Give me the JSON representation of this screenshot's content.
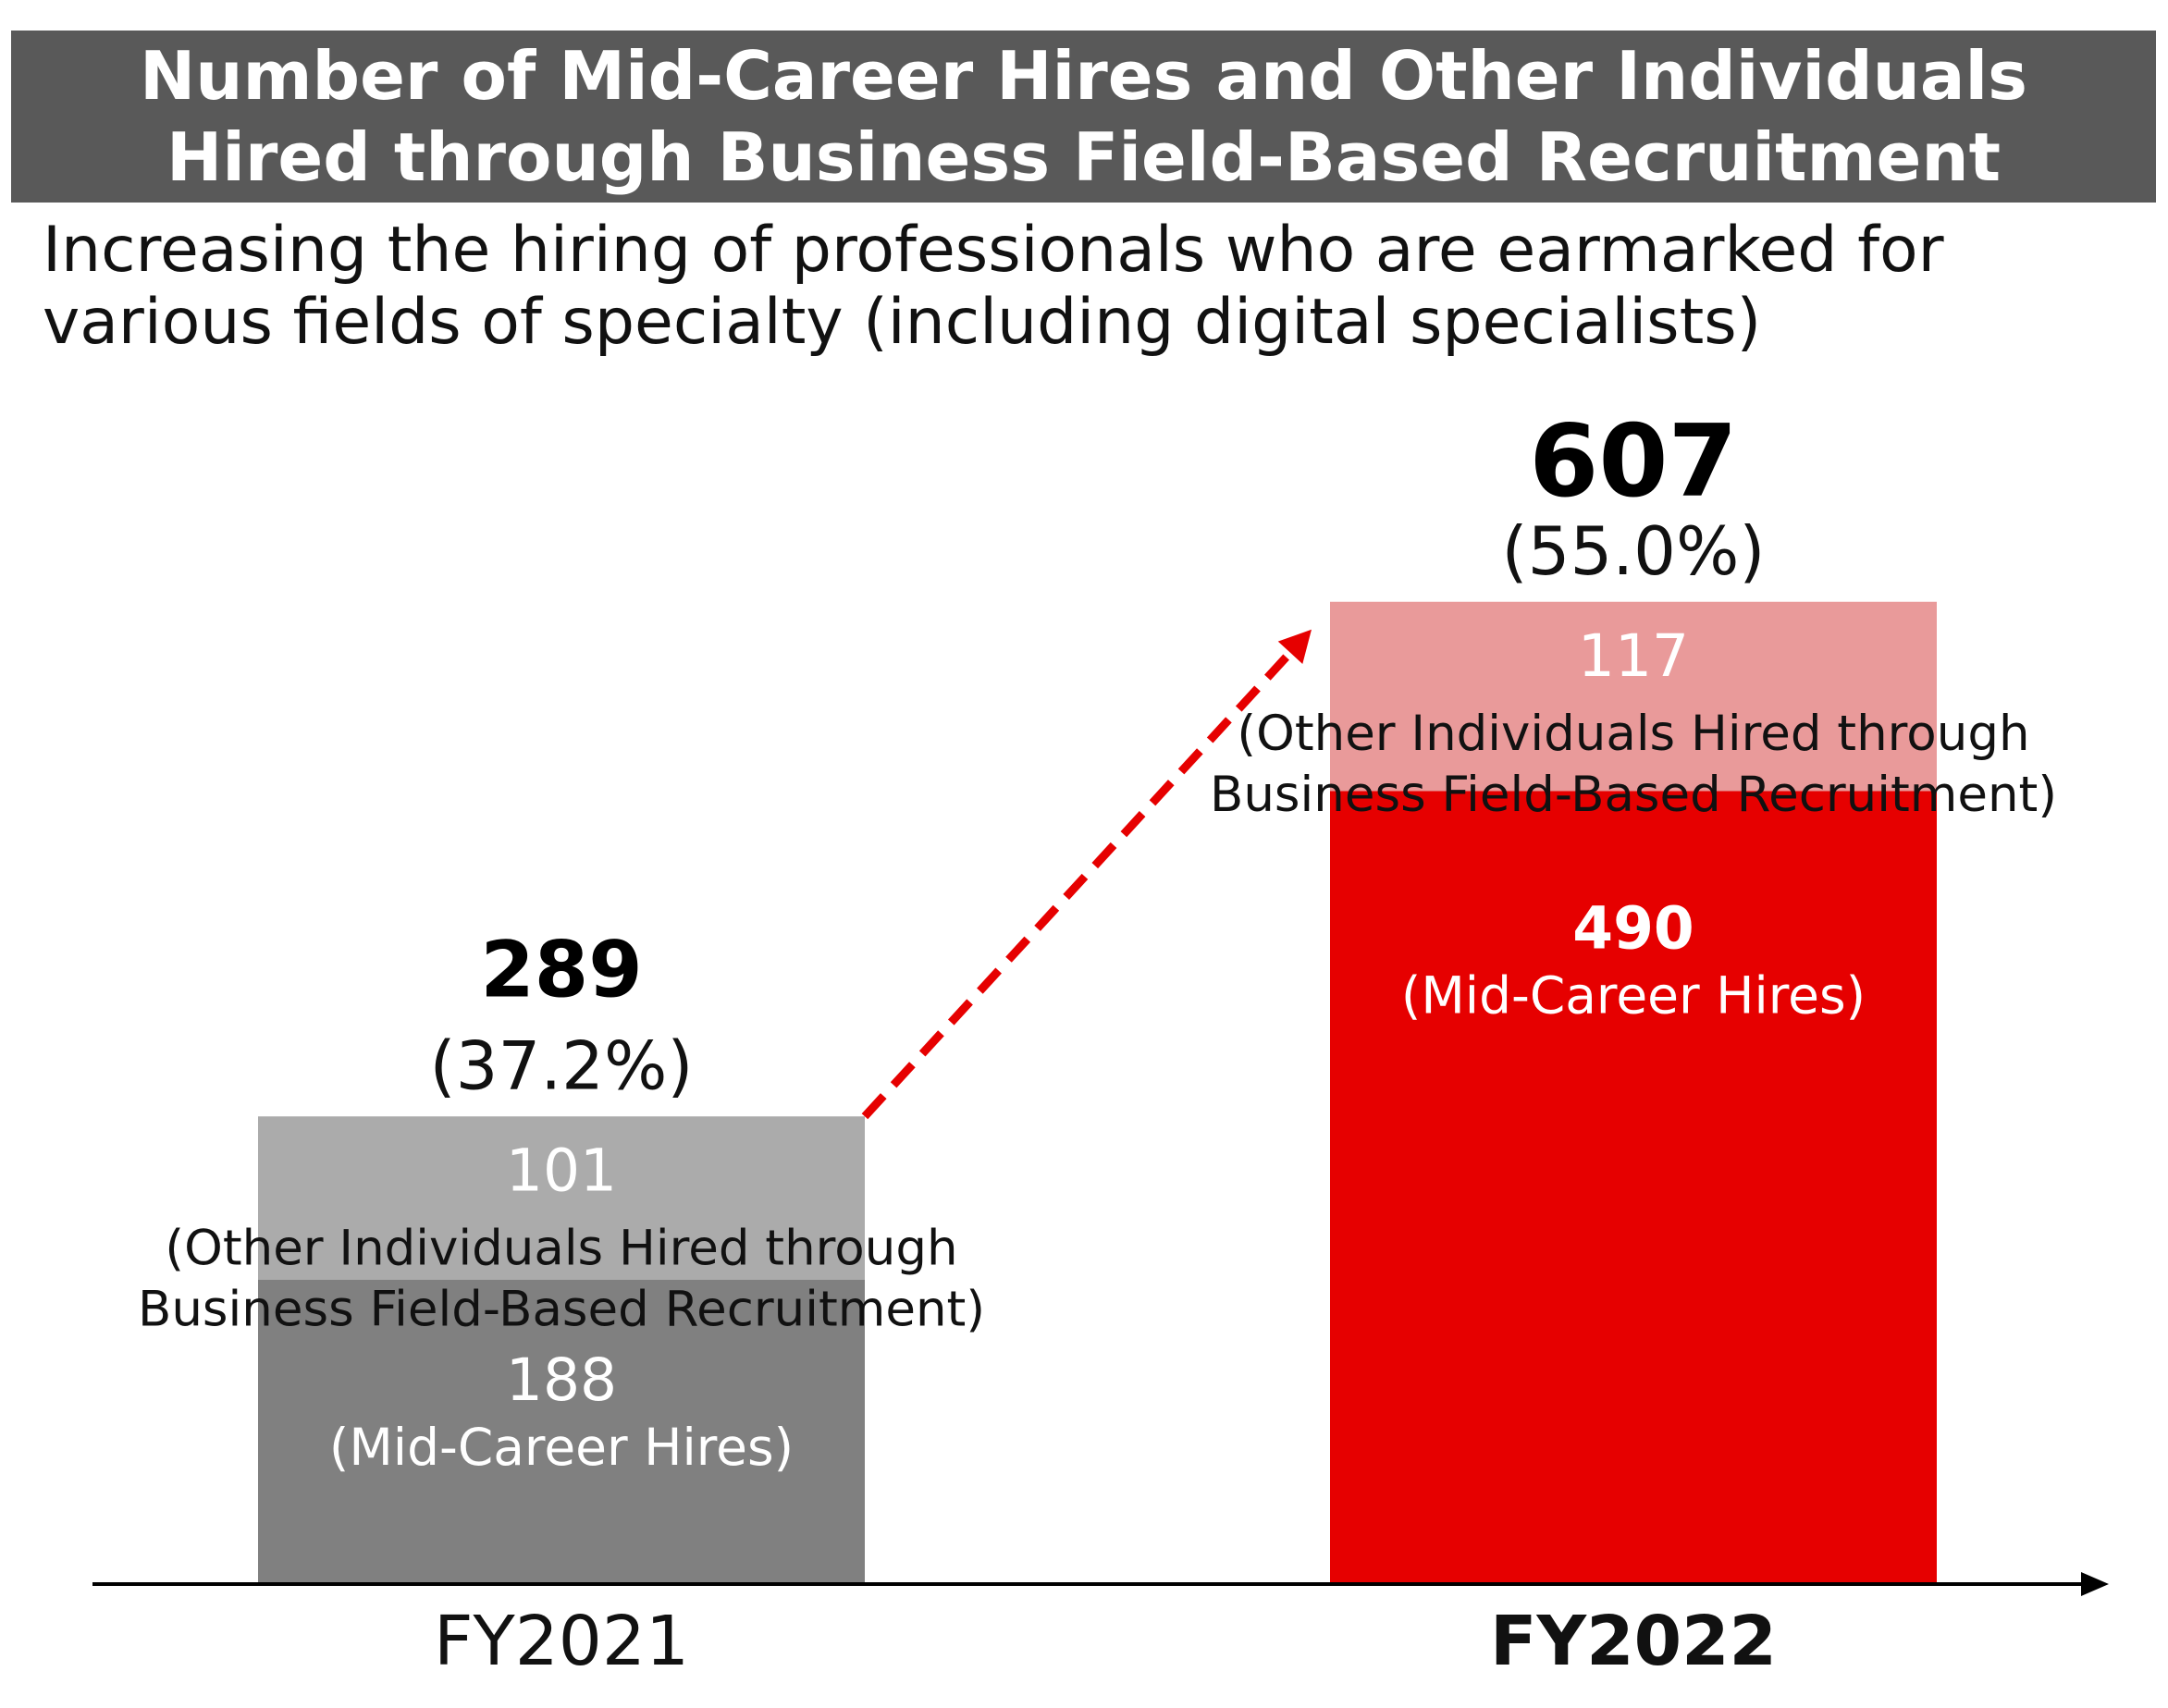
{
  "title": {
    "line1": "Number of Mid-Career Hires and Other Individuals",
    "line2": "Hired through Business Field-Based Recruitment"
  },
  "subtitle": {
    "line1": "Increasing the hiring of professionals who are earmarked for",
    "line2": "various fields of specialty (including digital specialists)"
  },
  "chart_data": {
    "type": "bar",
    "stacked": true,
    "categories": [
      "FY2021",
      "FY2022"
    ],
    "series": [
      {
        "name": "(Mid-Career Hires)",
        "values": [
          188,
          490
        ]
      },
      {
        "name": "(Other Individuals Hired through Business Field-Based Recruitment)",
        "values": [
          101,
          117
        ]
      }
    ],
    "totals": [
      289,
      607
    ],
    "total_percent_labels": [
      "(37.2%)",
      "(55.0%)"
    ],
    "segment_label_lines": {
      "mid_career": [
        "(Mid-Career Hires)"
      ],
      "other": [
        "(Other Individuals Hired through",
        "Business Field-Based Recruitment)"
      ]
    },
    "colors": {
      "FY2021": {
        "mid_career": "#808080",
        "other": "#ababab"
      },
      "FY2022": {
        "mid_career": "#e60000",
        "other": "#e99a9a"
      },
      "title_bg": "#595959",
      "arrow": "#e60000"
    },
    "growth_arrow": {
      "from": "FY2021",
      "to": "FY2022",
      "style": "dashed"
    },
    "highlight_category": "FY2022",
    "yaxis_visible": false,
    "grid": false
  }
}
